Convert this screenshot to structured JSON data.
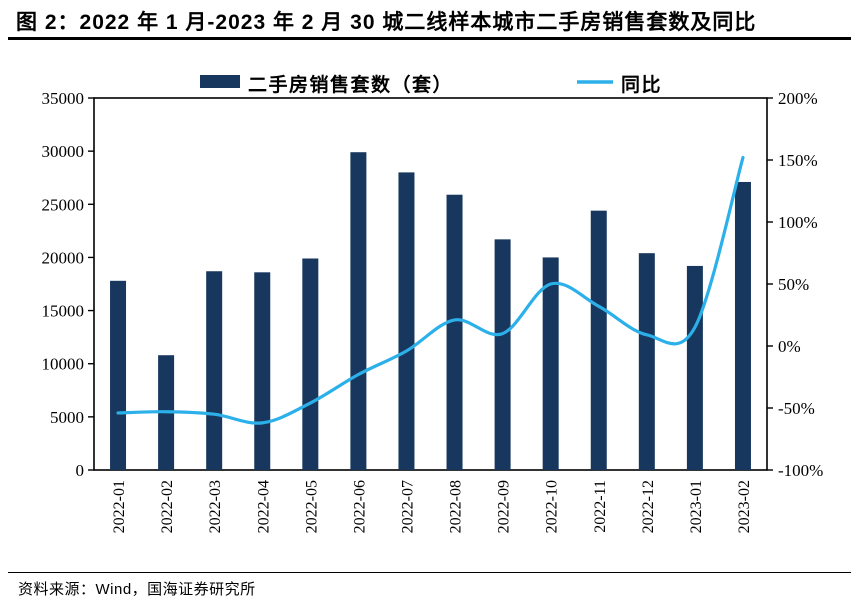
{
  "page": {
    "title": "图 2：2022 年 1 月-2023 年 2 月 30 城二线样本城市二手房销售套数及同比",
    "source": "资料来源：Wind，国海证券研究所"
  },
  "colors": {
    "bar": "#17375E",
    "line": "#2BB0E9",
    "axis": "#000000",
    "background": "#FFFFFF"
  },
  "chart_data": {
    "type": "bar",
    "subtype": "combo-bar-smooth-line-dual-axis",
    "title": "",
    "legend_position": "top",
    "gridlines": false,
    "categories": [
      "2022-01",
      "2022-02",
      "2022-03",
      "2022-04",
      "2022-05",
      "2022-06",
      "2022-07",
      "2022-08",
      "2022-09",
      "2022-10",
      "2022-11",
      "2022-12",
      "2023-01",
      "2023-02"
    ],
    "series": [
      {
        "name": "二手房销售套数（套）",
        "type": "bar",
        "axis": "left",
        "color": "#17375E",
        "values": [
          17800,
          10800,
          18700,
          18600,
          19900,
          29900,
          28000,
          25900,
          21700,
          20000,
          24400,
          20400,
          19200,
          27100
        ]
      },
      {
        "name": "同比",
        "type": "line",
        "axis": "right",
        "color": "#2BB0E9",
        "values_pct": [
          -54,
          -53,
          -55,
          -62,
          -46,
          -23,
          -4,
          21,
          10,
          50,
          32,
          9,
          15,
          152
        ]
      }
    ],
    "left_axis": {
      "min": 0,
      "max": 35000,
      "step": 5000,
      "tick_labels": [
        "0",
        "5000",
        "10000",
        "15000",
        "20000",
        "25000",
        "30000",
        "35000"
      ]
    },
    "right_axis": {
      "min": -100,
      "max": 200,
      "step": 50,
      "format": "percent",
      "tick_labels": [
        "-100%",
        "-50%",
        "0%",
        "50%",
        "100%",
        "150%",
        "200%"
      ]
    }
  }
}
